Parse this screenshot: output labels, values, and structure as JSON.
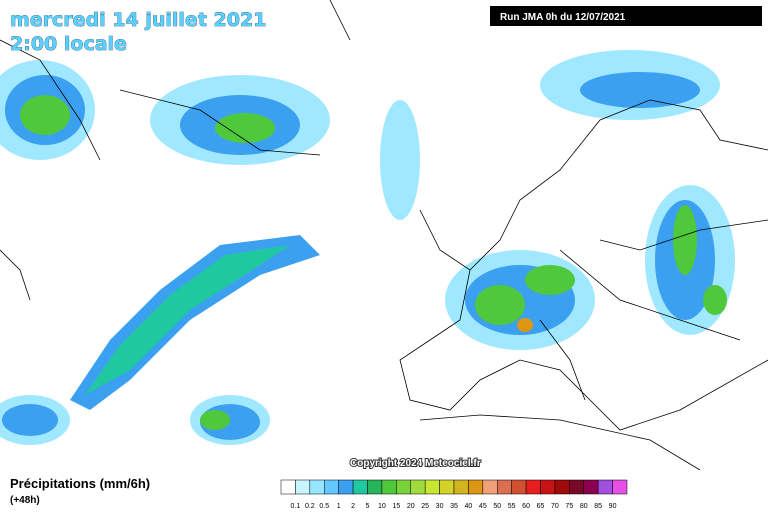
{
  "header": {
    "title_line1": "mercredi 14 juillet 2021",
    "title_line2": "2:00 locale",
    "run": "Run JMA 0h du 12/07/2021"
  },
  "copyright": "Copyright 2024 Meteociel.fr",
  "legend": {
    "title": "Précipitations (mm/6h)",
    "subtitle": "(+48h)",
    "labels": [
      "0.1",
      "0.2",
      "0.5",
      "1",
      "2",
      "5",
      "10",
      "15",
      "20",
      "25",
      "30",
      "35",
      "40",
      "45",
      "50",
      "55",
      "60",
      "65",
      "70",
      "75",
      "80",
      "85",
      "90"
    ],
    "colors": [
      "#ffffff",
      "#c8f5ff",
      "#96e6ff",
      "#64c8ff",
      "#3ca0f0",
      "#20c8a0",
      "#28b45a",
      "#50c83c",
      "#78d23c",
      "#a0dc3c",
      "#c8e632",
      "#d2d228",
      "#d2b41e",
      "#dc9614",
      "#f0a078",
      "#dc6e50",
      "#d25032",
      "#e61e1e",
      "#c81414",
      "#a00a0a",
      "#780a28",
      "#8c0050",
      "#a050dc",
      "#e650e6"
    ]
  }
}
